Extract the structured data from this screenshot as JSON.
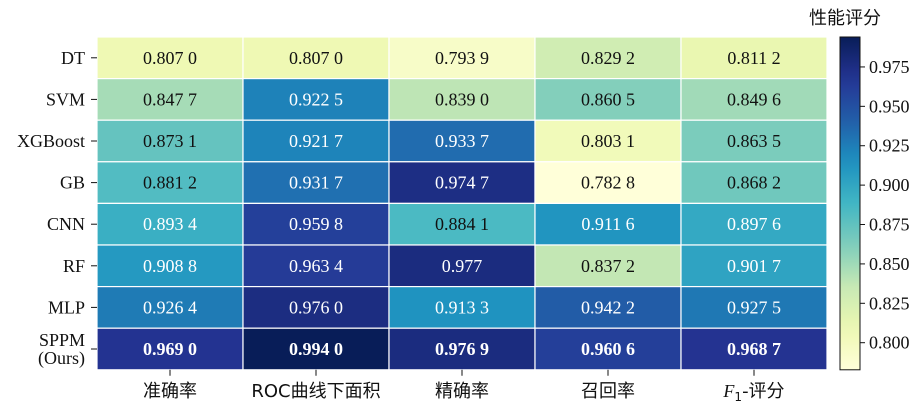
{
  "chart_data": {
    "type": "heatmap",
    "rows": [
      "DT",
      "SVM",
      "XGBoost",
      "GB",
      "CNN",
      "RF",
      "MLP",
      "SPPM\n(Ours)"
    ],
    "columns": [
      "准确率",
      "ROC曲线下面积",
      "精确率",
      "召回率",
      "F1-评分"
    ],
    "values": [
      [
        0.807,
        0.807,
        0.7939,
        0.8292,
        0.8112
      ],
      [
        0.8477,
        0.9225,
        0.839,
        0.8605,
        0.8496
      ],
      [
        0.8731,
        0.9217,
        0.9337,
        0.8031,
        0.8635
      ],
      [
        0.8812,
        0.9317,
        0.9747,
        0.7828,
        0.8682
      ],
      [
        0.8934,
        0.9598,
        0.8841,
        0.9116,
        0.8976
      ],
      [
        0.9088,
        0.9634,
        0.977,
        0.8372,
        0.9017
      ],
      [
        0.9264,
        0.976,
        0.9133,
        0.9422,
        0.9275
      ],
      [
        0.969,
        0.994,
        0.9769,
        0.9606,
        0.9687
      ]
    ],
    "cell_labels": [
      [
        "0.807 0",
        "0.807 0",
        "0.793 9",
        "0.829 2",
        "0.811 2"
      ],
      [
        "0.847 7",
        "0.922 5",
        "0.839 0",
        "0.860 5",
        "0.849 6"
      ],
      [
        "0.873 1",
        "0.921 7",
        "0.933 7",
        "0.803 1",
        "0.863 5"
      ],
      [
        "0.881 2",
        "0.931 7",
        "0.974 7",
        "0.782 8",
        "0.868 2"
      ],
      [
        "0.893 4",
        "0.959 8",
        "0.884 1",
        "0.911 6",
        "0.897 6"
      ],
      [
        "0.908 8",
        "0.963 4",
        "0.977",
        "0.837 2",
        "0.901 7"
      ],
      [
        "0.926 4",
        "0.976 0",
        "0.913 3",
        "0.942 2",
        "0.927 5"
      ],
      [
        "0.969 0",
        "0.994 0",
        "0.976 9",
        "0.960 6",
        "0.968 7"
      ]
    ],
    "bold_rows": [
      7
    ],
    "colorbar": {
      "title": "性能评分",
      "ticks": [
        0.8,
        0.825,
        0.85,
        0.875,
        0.9,
        0.925,
        0.95,
        0.975
      ],
      "tick_labels": [
        "0.800",
        "0.825",
        "0.850",
        "0.875",
        "0.900",
        "0.925",
        "0.950",
        "0.975"
      ],
      "range": [
        0.7828,
        0.994
      ],
      "colormap": "YlGnBu"
    }
  }
}
